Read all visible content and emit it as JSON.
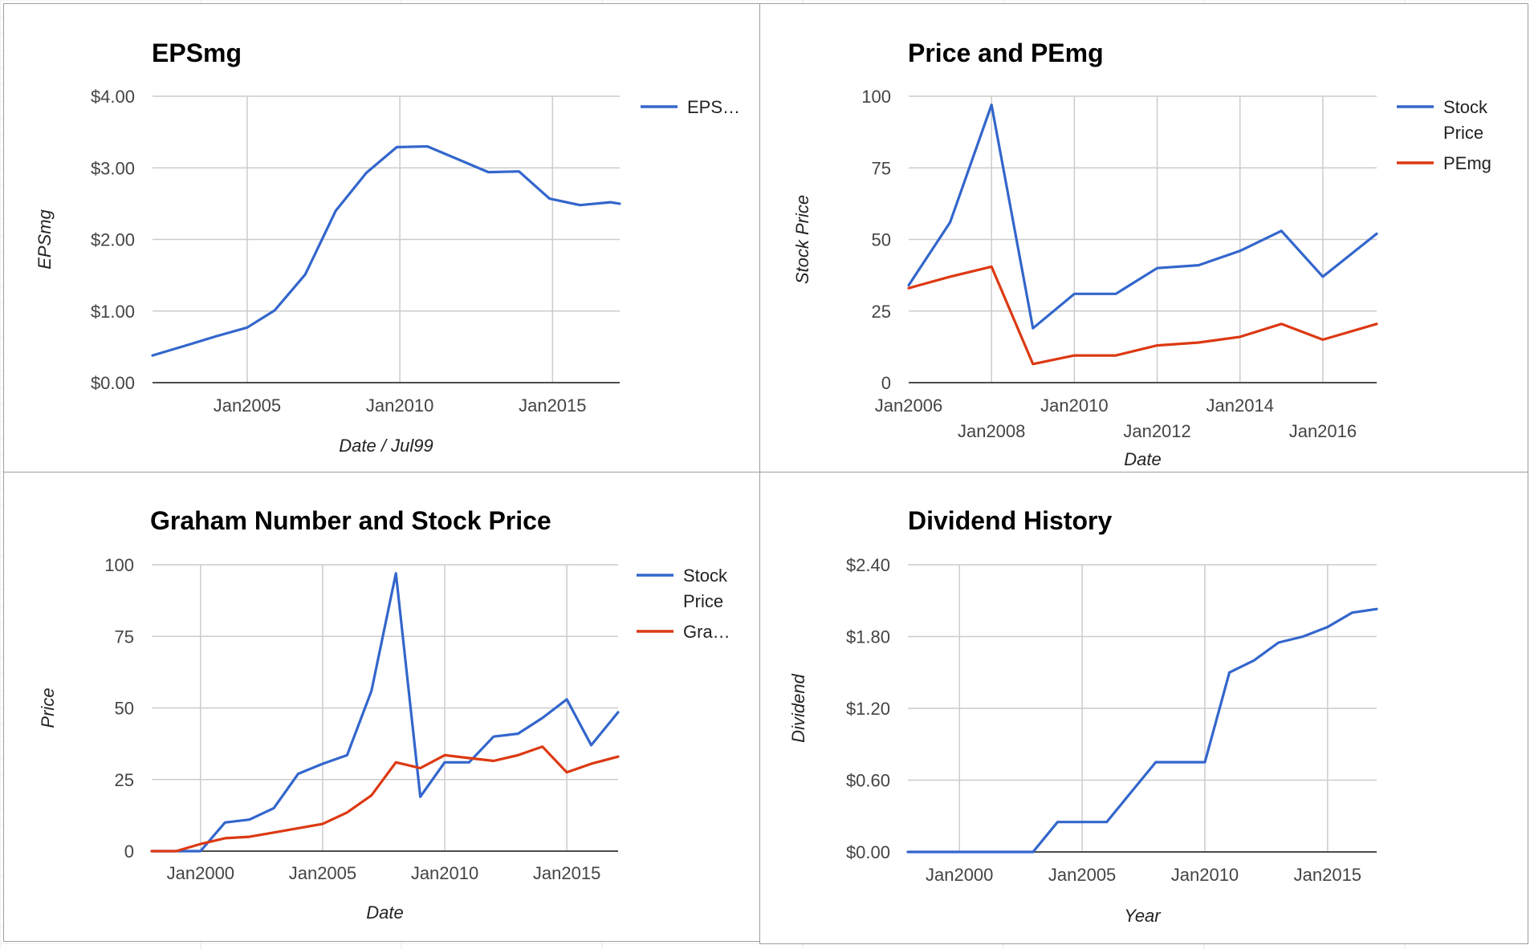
{
  "colors": {
    "blue": "#3366cc",
    "red": "#dc3912",
    "grid": "#cccccc"
  },
  "chart_data": [
    {
      "type": "line",
      "title": "EPSmg",
      "xlabel": "Date / Jul99",
      "ylabel": "EPSmg",
      "xlim": [
        2001.9,
        2017.2
      ],
      "ylim": [
        0,
        4
      ],
      "x_ticks": [
        {
          "label": "Jan2005",
          "x": 2005
        },
        {
          "label": "Jan2010",
          "x": 2010
        },
        {
          "label": "Jan2015",
          "x": 2015
        }
      ],
      "y_ticks": [
        {
          "label": "$0.00",
          "y": 0
        },
        {
          "label": "$1.00",
          "y": 1
        },
        {
          "label": "$2.00",
          "y": 2
        },
        {
          "label": "$3.00",
          "y": 3
        },
        {
          "label": "$4.00",
          "y": 4
        }
      ],
      "legend_position": "right",
      "series": [
        {
          "name": "EPS…",
          "color": "#3366cc",
          "points": [
            [
              2001.9,
              0.38
            ],
            [
              2003,
              0.52
            ],
            [
              2004,
              0.65
            ],
            [
              2005,
              0.77
            ],
            [
              2005.9,
              1.01
            ],
            [
              2006.9,
              1.51
            ],
            [
              2007.9,
              2.4
            ],
            [
              2008.9,
              2.93
            ],
            [
              2009.9,
              3.29
            ],
            [
              2010.9,
              3.3
            ],
            [
              2011.9,
              3.12
            ],
            [
              2012.9,
              2.94
            ],
            [
              2013.9,
              2.95
            ],
            [
              2014.9,
              2.57
            ],
            [
              2015.9,
              2.48
            ],
            [
              2016.9,
              2.52
            ],
            [
              2017.2,
              2.5
            ]
          ]
        }
      ]
    },
    {
      "type": "line",
      "title": "Price and PEmg",
      "xlabel": "Date",
      "ylabel": "Stock Price",
      "xlim": [
        2006,
        2017.3
      ],
      "ylim": [
        0,
        100
      ],
      "x_ticks": [
        {
          "label": "Jan2006",
          "x": 2006,
          "row": 1
        },
        {
          "label": "Jan2008",
          "x": 2008,
          "row": 2
        },
        {
          "label": "Jan2010",
          "x": 2010,
          "row": 1
        },
        {
          "label": "Jan2012",
          "x": 2012,
          "row": 2
        },
        {
          "label": "Jan2014",
          "x": 2014,
          "row": 1
        },
        {
          "label": "Jan2016",
          "x": 2016,
          "row": 2
        }
      ],
      "y_ticks": [
        {
          "label": "0",
          "y": 0
        },
        {
          "label": "25",
          "y": 25
        },
        {
          "label": "50",
          "y": 50
        },
        {
          "label": "75",
          "y": 75
        },
        {
          "label": "100",
          "y": 100
        }
      ],
      "legend_position": "right",
      "series": [
        {
          "name": "Stock Price",
          "color": "#3366cc",
          "points": [
            [
              2006,
              34
            ],
            [
              2007,
              56
            ],
            [
              2008,
              97
            ],
            [
              2009,
              19
            ],
            [
              2010,
              31
            ],
            [
              2011,
              31
            ],
            [
              2012,
              40
            ],
            [
              2013,
              41
            ],
            [
              2014,
              46
            ],
            [
              2015,
              53
            ],
            [
              2016,
              37
            ],
            [
              2017.3,
              52
            ]
          ]
        },
        {
          "name": "PEmg",
          "color": "#dc3912",
          "points": [
            [
              2006,
              33
            ],
            [
              2007,
              37
            ],
            [
              2008,
              40.5
            ],
            [
              2009,
              6.5
            ],
            [
              2010,
              9.5
            ],
            [
              2011,
              9.5
            ],
            [
              2012,
              13
            ],
            [
              2013,
              14
            ],
            [
              2014,
              16
            ],
            [
              2015,
              20.5
            ],
            [
              2016,
              15
            ],
            [
              2017.3,
              20.5
            ]
          ]
        }
      ]
    },
    {
      "type": "line",
      "title": "Graham Number and Stock Price",
      "xlabel": "Date",
      "ylabel": "Price",
      "xlim": [
        1998,
        2017.1
      ],
      "ylim": [
        0,
        100
      ],
      "x_ticks": [
        {
          "label": "Jan2000",
          "x": 2000
        },
        {
          "label": "Jan2005",
          "x": 2005
        },
        {
          "label": "Jan2010",
          "x": 2010
        },
        {
          "label": "Jan2015",
          "x": 2015
        }
      ],
      "y_ticks": [
        {
          "label": "0",
          "y": 0
        },
        {
          "label": "25",
          "y": 25
        },
        {
          "label": "50",
          "y": 50
        },
        {
          "label": "75",
          "y": 75
        },
        {
          "label": "100",
          "y": 100
        }
      ],
      "legend_position": "right",
      "series": [
        {
          "name": "Stock Price",
          "color": "#3366cc",
          "points": [
            [
              1998,
              0
            ],
            [
              1999,
              0
            ],
            [
              2000,
              0
            ],
            [
              2001,
              10
            ],
            [
              2002,
              11
            ],
            [
              2003,
              15
            ],
            [
              2004,
              27
            ],
            [
              2005,
              30.5
            ],
            [
              2006,
              33.5
            ],
            [
              2007,
              56
            ],
            [
              2008,
              97
            ],
            [
              2009,
              19
            ],
            [
              2010,
              31
            ],
            [
              2011,
              31
            ],
            [
              2012,
              40
            ],
            [
              2013,
              41
            ],
            [
              2014,
              46.5
            ],
            [
              2015,
              53
            ],
            [
              2016,
              37
            ],
            [
              2017.1,
              48.5
            ]
          ]
        },
        {
          "name": "Gra…",
          "color": "#dc3912",
          "points": [
            [
              1998,
              0
            ],
            [
              1999,
              0
            ],
            [
              2000,
              2.5
            ],
            [
              2001,
              4.5
            ],
            [
              2002,
              5
            ],
            [
              2003,
              6.5
            ],
            [
              2004,
              8
            ],
            [
              2005,
              9.5
            ],
            [
              2006,
              13.5
            ],
            [
              2007,
              19.5
            ],
            [
              2008,
              31
            ],
            [
              2009,
              29
            ],
            [
              2010,
              33.5
            ],
            [
              2011,
              32.5
            ],
            [
              2012,
              31.5
            ],
            [
              2013,
              33.5
            ],
            [
              2014,
              36.5
            ],
            [
              2015,
              27.5
            ],
            [
              2016,
              30.5
            ],
            [
              2017.1,
              33
            ]
          ]
        }
      ]
    },
    {
      "type": "line",
      "title": "Dividend History",
      "xlabel": "Year",
      "ylabel": "Dividend",
      "xlim": [
        1997.9,
        2017
      ],
      "ylim": [
        0,
        2.4
      ],
      "x_ticks": [
        {
          "label": "Jan2000",
          "x": 2000
        },
        {
          "label": "Jan2005",
          "x": 2005
        },
        {
          "label": "Jan2010",
          "x": 2010
        },
        {
          "label": "Jan2015",
          "x": 2015
        }
      ],
      "y_ticks": [
        {
          "label": "$0.00",
          "y": 0
        },
        {
          "label": "$0.60",
          "y": 0.6
        },
        {
          "label": "$1.20",
          "y": 1.2
        },
        {
          "label": "$1.80",
          "y": 1.8
        },
        {
          "label": "$2.40",
          "y": 2.4
        }
      ],
      "legend_position": "none",
      "series": [
        {
          "name": "",
          "color": "#3366cc",
          "points": [
            [
              1997.9,
              0
            ],
            [
              2003,
              0
            ],
            [
              2004,
              0.25
            ],
            [
              2005,
              0.25
            ],
            [
              2006,
              0.25
            ],
            [
              2007,
              0.5
            ],
            [
              2008,
              0.75
            ],
            [
              2009,
              0.75
            ],
            [
              2010,
              0.75
            ],
            [
              2011,
              1.5
            ],
            [
              2012,
              1.6
            ],
            [
              2013,
              1.75
            ],
            [
              2014,
              1.8
            ],
            [
              2015,
              1.88
            ],
            [
              2016,
              2
            ],
            [
              2017,
              2.03
            ]
          ]
        }
      ]
    }
  ]
}
